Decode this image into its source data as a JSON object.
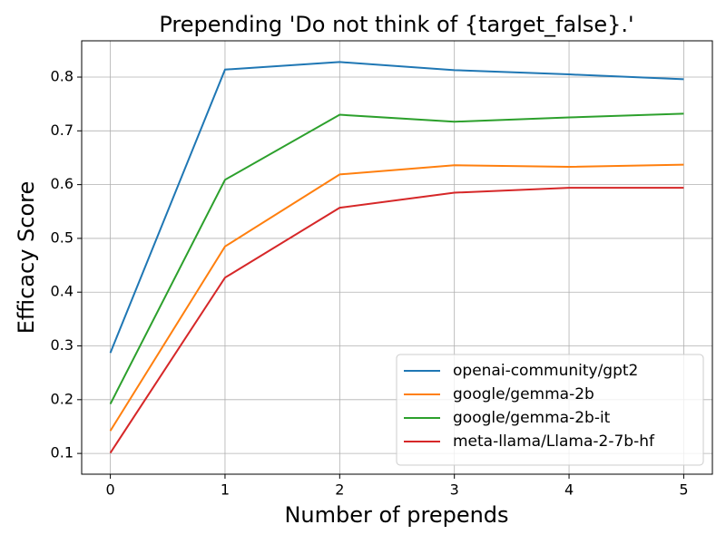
{
  "chart_data": {
    "type": "line",
    "title": "Prepending 'Do not think of {target_false}.'",
    "x_label": "Number of prepends",
    "y_label": "Efficacy Score",
    "x": [
      0,
      1,
      2,
      3,
      4,
      5
    ],
    "series": [
      {
        "name": "openai-community/gpt2",
        "color": "#1f77b4",
        "values": [
          0.287,
          0.814,
          0.828,
          0.813,
          0.805,
          0.796
        ]
      },
      {
        "name": "google/gemma-2b",
        "color": "#ff7f0e",
        "values": [
          0.142,
          0.485,
          0.619,
          0.636,
          0.633,
          0.637
        ]
      },
      {
        "name": "google/gemma-2b-it",
        "color": "#2ca02c",
        "values": [
          0.192,
          0.609,
          0.73,
          0.717,
          0.725,
          0.732
        ]
      },
      {
        "name": "meta-llama/Llama-2-7b-hf",
        "color": "#d62728",
        "values": [
          0.101,
          0.427,
          0.557,
          0.585,
          0.594,
          0.594
        ]
      }
    ],
    "xlim": [
      -0.25,
      5.25
    ],
    "ylim": [
      0.0614,
      0.8675
    ],
    "xticks": [
      0,
      1,
      2,
      3,
      4,
      5
    ],
    "yticks": [
      0.1,
      0.2,
      0.3,
      0.4,
      0.5,
      0.6,
      0.7,
      0.8
    ],
    "grid": true,
    "legend": "lower right"
  }
}
